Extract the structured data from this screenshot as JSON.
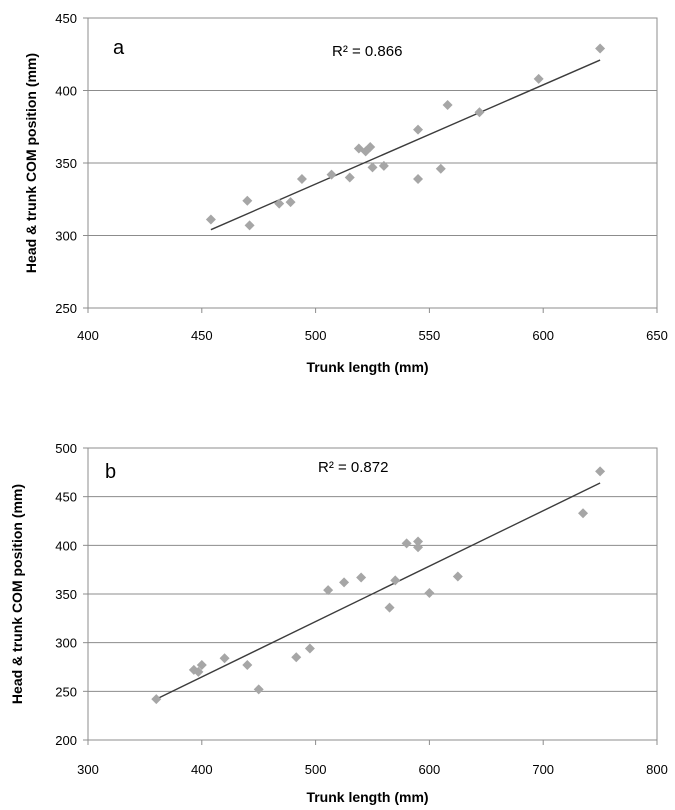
{
  "colors": {
    "background": "#ffffff",
    "plot_border": "#8c8c8c",
    "gridline": "#8c8c8c",
    "marker": "#a6a6a6",
    "trendline": "#3c3c3c"
  },
  "chart_data": [
    {
      "type": "scatter",
      "panel_label": "a",
      "annotation": "R² = 0.866",
      "xlabel": "Trunk length (mm)",
      "ylabel": "Head & trunk COM position (mm)",
      "xlim": [
        400,
        650
      ],
      "ylim": [
        250,
        450
      ],
      "xticks": [
        400,
        450,
        500,
        550,
        600,
        650
      ],
      "yticks": [
        250,
        300,
        350,
        400,
        450
      ],
      "grid": "horizontal",
      "marker": "diamond",
      "points": [
        [
          454,
          311
        ],
        [
          470,
          324
        ],
        [
          471,
          307
        ],
        [
          484,
          322
        ],
        [
          489,
          323
        ],
        [
          494,
          339
        ],
        [
          507,
          342
        ],
        [
          515,
          340
        ],
        [
          519,
          360
        ],
        [
          522,
          358
        ],
        [
          524,
          361
        ],
        [
          525,
          347
        ],
        [
          530,
          348
        ],
        [
          545,
          373
        ],
        [
          545,
          339
        ],
        [
          555,
          346
        ],
        [
          558,
          390
        ],
        [
          572,
          385
        ],
        [
          598,
          408
        ],
        [
          625,
          429
        ]
      ],
      "trendline": {
        "x": [
          454,
          625
        ],
        "y": [
          304,
          421
        ]
      }
    },
    {
      "type": "scatter",
      "panel_label": "b",
      "annotation": "R² = 0.872",
      "xlabel": "Trunk length (mm)",
      "ylabel": "Head & trunk COM position (mm)",
      "xlim": [
        300,
        800
      ],
      "ylim": [
        200,
        500
      ],
      "xticks": [
        300,
        400,
        500,
        600,
        700,
        800
      ],
      "yticks": [
        200,
        250,
        300,
        350,
        400,
        450,
        500
      ],
      "grid": "horizontal",
      "marker": "diamond",
      "points": [
        [
          360,
          242
        ],
        [
          393,
          272
        ],
        [
          397,
          270
        ],
        [
          400,
          277
        ],
        [
          420,
          284
        ],
        [
          440,
          277
        ],
        [
          450,
          252
        ],
        [
          483,
          285
        ],
        [
          495,
          294
        ],
        [
          511,
          354
        ],
        [
          525,
          362
        ],
        [
          540,
          367
        ],
        [
          565,
          336
        ],
        [
          570,
          364
        ],
        [
          580,
          402
        ],
        [
          590,
          398
        ],
        [
          590,
          404
        ],
        [
          600,
          351
        ],
        [
          625,
          368
        ],
        [
          735,
          433
        ],
        [
          750,
          476
        ]
      ],
      "trendline": {
        "x": [
          360,
          750
        ],
        "y": [
          242,
          464
        ]
      }
    }
  ]
}
